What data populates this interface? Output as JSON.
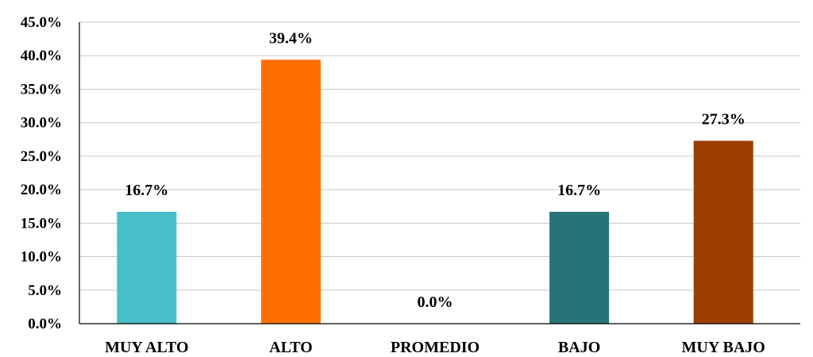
{
  "chart_data": {
    "type": "bar",
    "categories": [
      "MUY ALTO",
      "ALTO",
      "PROMEDIO",
      "BAJO",
      "MUY BAJO"
    ],
    "values": [
      16.7,
      39.4,
      0.0,
      16.7,
      27.3
    ],
    "data_labels": [
      "16.7%",
      "39.4%",
      "0.0%",
      "16.7%",
      "27.3%"
    ],
    "colors": [
      "#47bec8",
      "#ff6f00",
      "#9e9e9e",
      "#267478",
      "#9b3e00"
    ],
    "ylim": [
      0,
      45
    ],
    "y_ticks": [
      0,
      5,
      10,
      15,
      20,
      25,
      30,
      35,
      40,
      45
    ],
    "y_tick_labels": [
      "0.0%",
      "5.0%",
      "10.0%",
      "15.0%",
      "20.0%",
      "25.0%",
      "30.0%",
      "35.0%",
      "40.0%",
      "45.0%"
    ],
    "grid": true,
    "legend": "none",
    "title": "",
    "xlabel": "",
    "ylabel": ""
  }
}
